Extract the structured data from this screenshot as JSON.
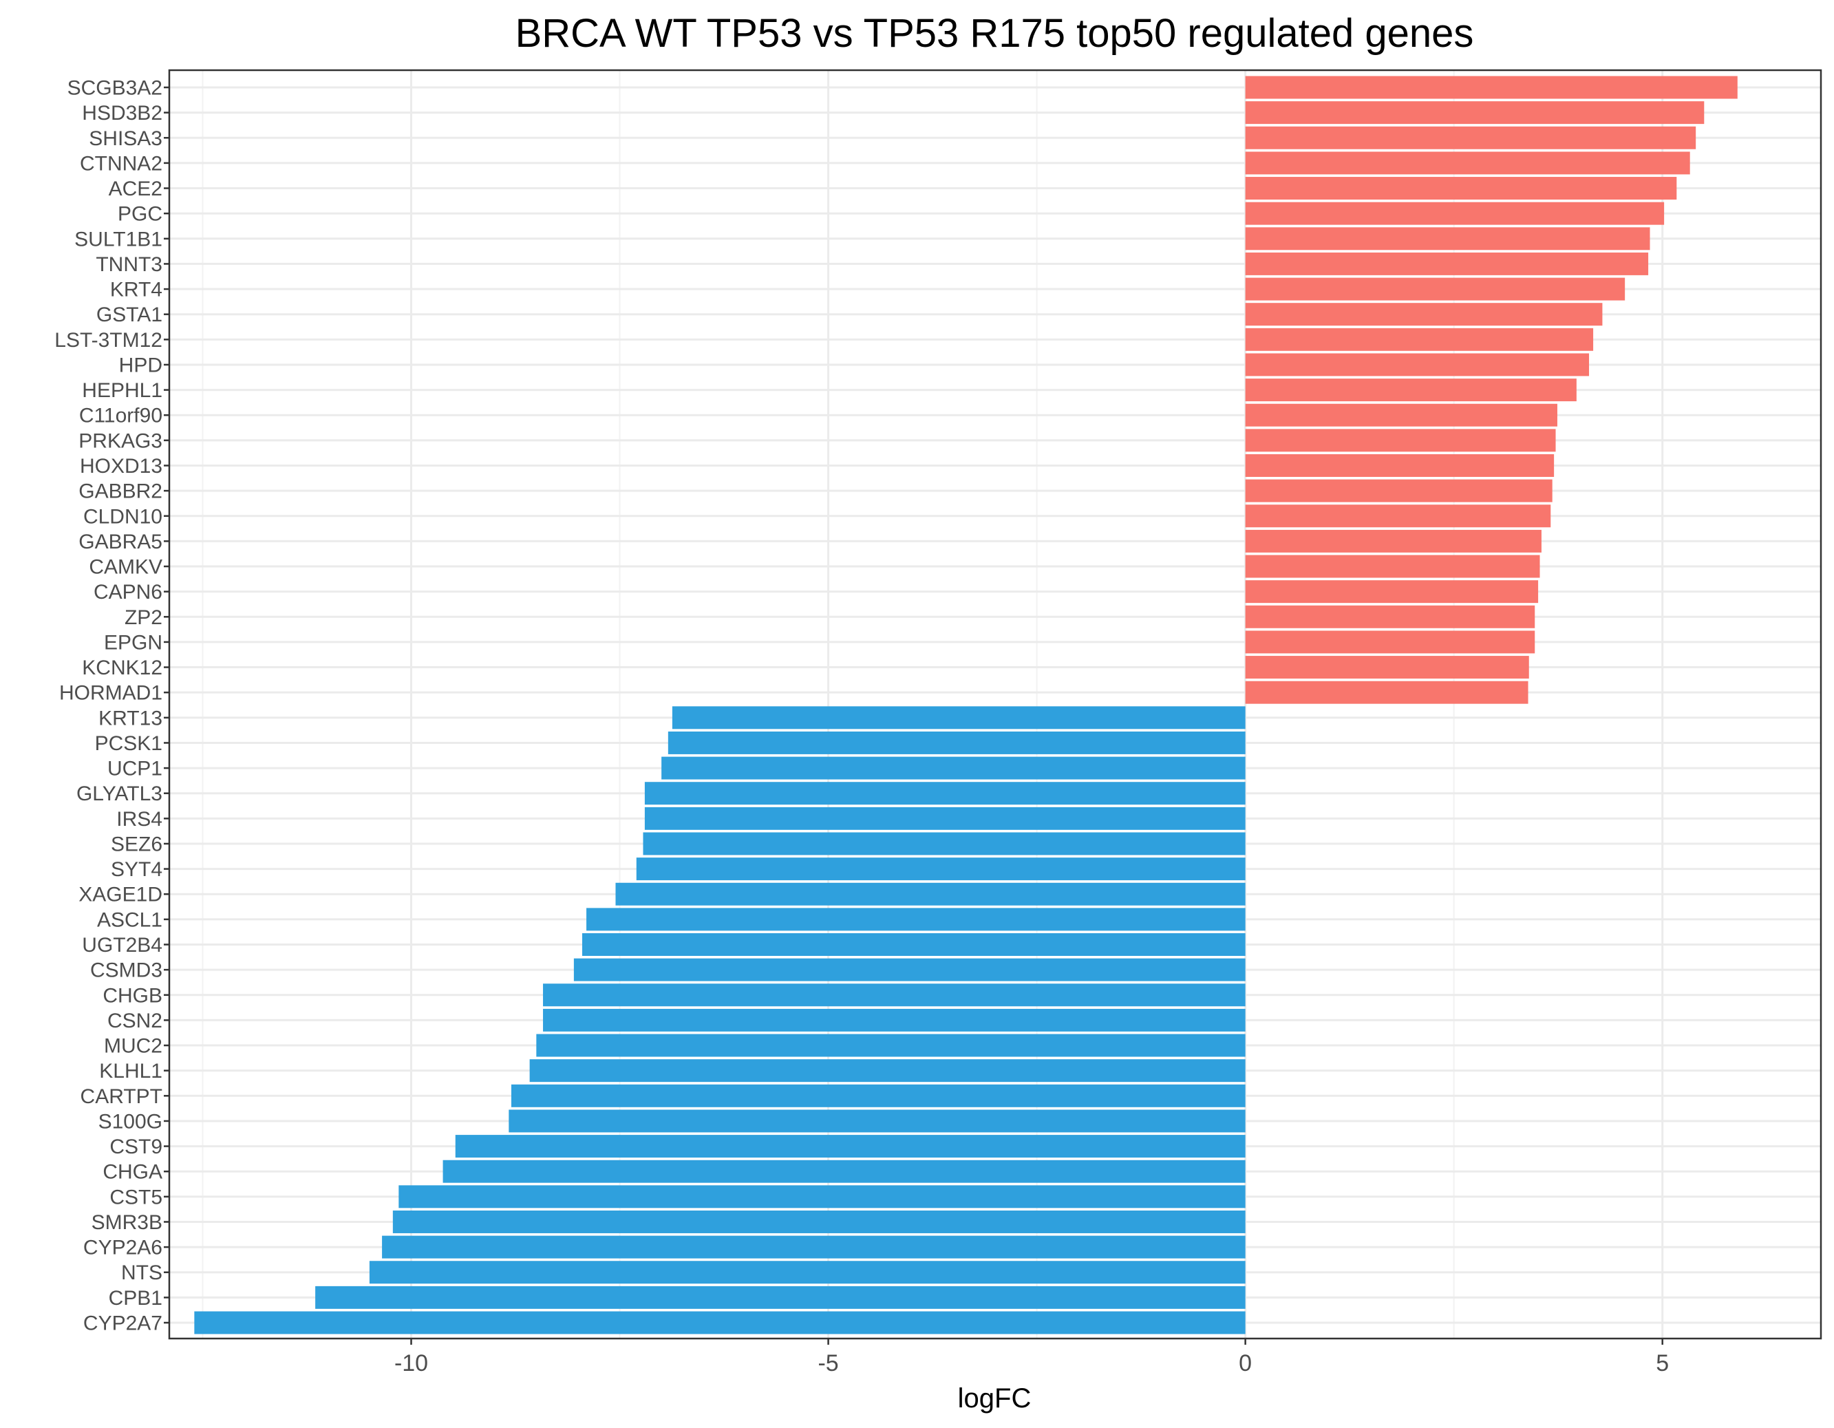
{
  "chart_data": {
    "type": "bar",
    "orientation": "horizontal",
    "title": "BRCA WT TP53 vs TP53 R175 top50 regulated genes",
    "xlabel": "logFC",
    "ylabel": "",
    "xlim": [
      -12.9,
      6.9
    ],
    "xticks": [
      -10,
      -5,
      0,
      5
    ],
    "xtick_labels": [
      "-10",
      "-5",
      "0",
      "5"
    ],
    "grid": true,
    "legend": "none",
    "colors": {
      "up": "#F8766D",
      "down": "#2FA0DD"
    },
    "categories": [
      "SCGB3A2",
      "HSD3B2",
      "SHISA3",
      "CTNNA2",
      "ACE2",
      "PGC",
      "SULT1B1",
      "TNNT3",
      "KRT4",
      "GSTA1",
      "LST-3TM12",
      "HPD",
      "HEPHL1",
      "C11orf90",
      "PRKAG3",
      "HOXD13",
      "GABBR2",
      "CLDN10",
      "GABRA5",
      "CAMKV",
      "CAPN6",
      "ZP2",
      "EPGN",
      "KCNK12",
      "HORMAD1",
      "KRT13",
      "PCSK1",
      "UCP1",
      "GLYATL3",
      "IRS4",
      "SEZ6",
      "SYT4",
      "XAGE1D",
      "ASCL1",
      "UGT2B4",
      "CSMD3",
      "CHGB",
      "CSN2",
      "MUC2",
      "KLHL1",
      "CARTPT",
      "S100G",
      "CST9",
      "CHGA",
      "CST5",
      "SMR3B",
      "CYP2A6",
      "NTS",
      "CPB1",
      "CYP2A7"
    ],
    "values": [
      5.9,
      5.5,
      5.4,
      5.33,
      5.17,
      5.02,
      4.85,
      4.83,
      4.55,
      4.28,
      4.17,
      4.12,
      3.97,
      3.74,
      3.72,
      3.7,
      3.68,
      3.66,
      3.55,
      3.53,
      3.51,
      3.47,
      3.47,
      3.4,
      3.39,
      -6.87,
      -6.92,
      -7.0,
      -7.2,
      -7.2,
      -7.22,
      -7.3,
      -7.55,
      -7.9,
      -7.95,
      -8.05,
      -8.42,
      -8.42,
      -8.5,
      -8.58,
      -8.8,
      -8.83,
      -9.47,
      -9.62,
      -10.15,
      -10.22,
      -10.35,
      -10.5,
      -11.15,
      -12.6
    ]
  }
}
